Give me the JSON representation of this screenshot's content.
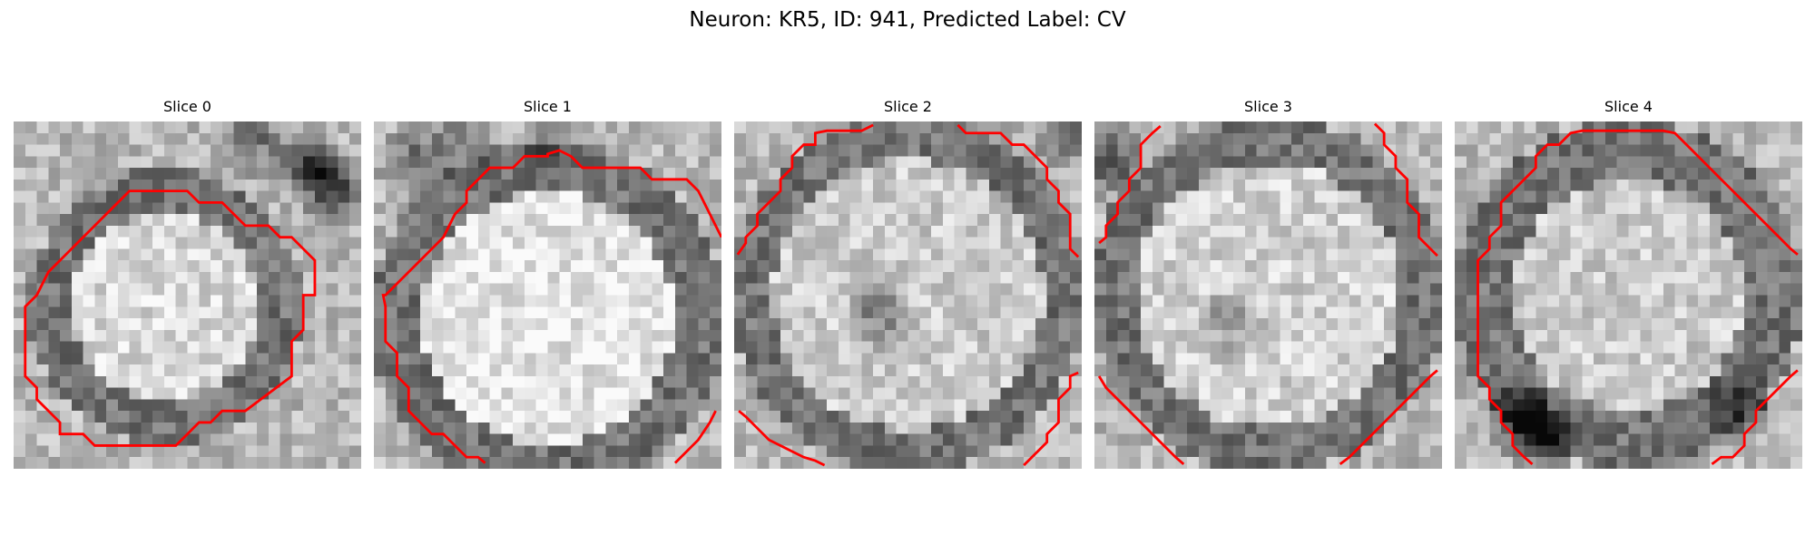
{
  "figure": {
    "title": "Neuron: KR5, ID: 941, Predicted Label: CV"
  },
  "panels": [
    {
      "title": "Slice 0",
      "contour_color": "#ff0000",
      "texture_seed": 3
    },
    {
      "title": "Slice 1",
      "contour_color": "#ff0000",
      "texture_seed": 11
    },
    {
      "title": "Slice 2",
      "contour_color": "#ff0000",
      "texture_seed": 19
    },
    {
      "title": "Slice 3",
      "contour_color": "#ff0000",
      "texture_seed": 27
    },
    {
      "title": "Slice 4",
      "contour_color": "#ff0000",
      "texture_seed": 35
    }
  ],
  "colormap": "gray"
}
